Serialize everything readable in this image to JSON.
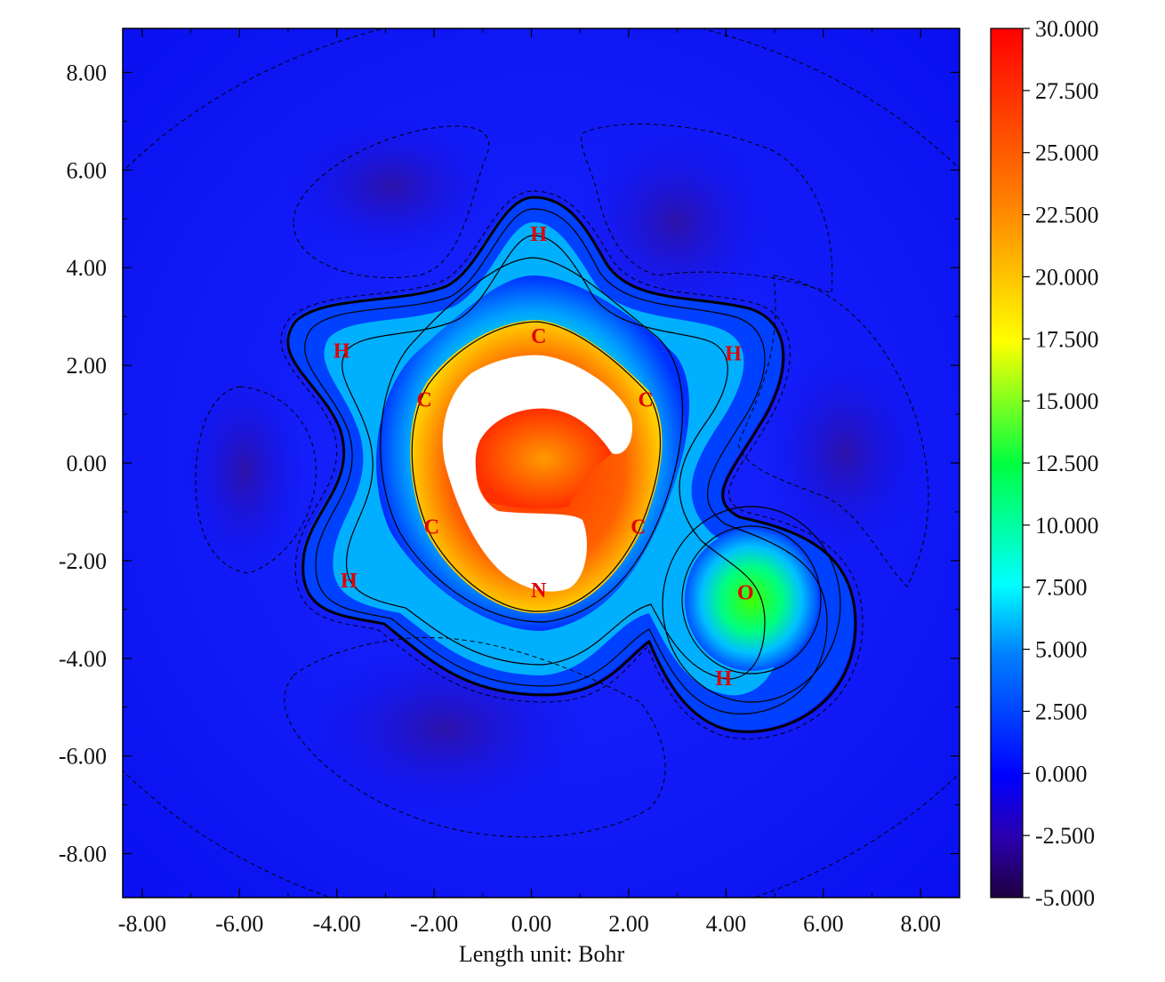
{
  "chart_data": {
    "type": "heatmap",
    "xlabel": "Length unit: Bohr",
    "ylabel": "",
    "xlim": [
      -8.4,
      8.8
    ],
    "ylim": [
      -8.9,
      8.9
    ],
    "x_ticks": [
      "-8.00",
      "-6.00",
      "-4.00",
      "-2.00",
      "0.00",
      "2.00",
      "4.00",
      "6.00",
      "8.00"
    ],
    "x_tick_values": [
      -8,
      -6,
      -4,
      -2,
      0,
      2,
      4,
      6,
      8
    ],
    "y_ticks": [
      "8.00",
      "6.00",
      "4.00",
      "2.00",
      "0.00",
      "-2.00",
      "-4.00",
      "-6.00",
      "-8.00"
    ],
    "y_tick_values": [
      8,
      6,
      4,
      2,
      0,
      -2,
      -4,
      -6,
      -8
    ],
    "colorbar": {
      "min": -5.0,
      "max": 30.0,
      "tick_labels": [
        "30.000",
        "27.500",
        "25.000",
        "22.500",
        "20.000",
        "17.500",
        "15.000",
        "12.500",
        "10.000",
        "7.500",
        "5.000",
        "2.500",
        "0.000",
        "-2.500",
        "-5.000"
      ],
      "tick_values": [
        30,
        27.5,
        25,
        22.5,
        20,
        17.5,
        15,
        12.5,
        10,
        7.5,
        5,
        2.5,
        0,
        -2.5,
        -5
      ],
      "colormap": "rainbow",
      "colors": [
        "#2a0050",
        "#0000ff",
        "#00ffff",
        "#00ff00",
        "#ffff00",
        "#ff0000"
      ]
    },
    "atoms": [
      {
        "label": "H",
        "x": 0.15,
        "y": 4.7
      },
      {
        "label": "C",
        "x": 0.15,
        "y": 2.6
      },
      {
        "label": "H",
        "x": -3.9,
        "y": 2.3
      },
      {
        "label": "C",
        "x": -2.2,
        "y": 1.3
      },
      {
        "label": "C",
        "x": 2.35,
        "y": 1.3
      },
      {
        "label": "H",
        "x": 4.15,
        "y": 2.25
      },
      {
        "label": "C",
        "x": -2.05,
        "y": -1.3
      },
      {
        "label": "C",
        "x": 2.2,
        "y": -1.3
      },
      {
        "label": "N",
        "x": 0.15,
        "y": -2.6
      },
      {
        "label": "H",
        "x": -3.75,
        "y": -2.4
      },
      {
        "label": "O",
        "x": 4.4,
        "y": -2.65
      },
      {
        "label": "H",
        "x": 3.95,
        "y": -4.4
      }
    ]
  }
}
